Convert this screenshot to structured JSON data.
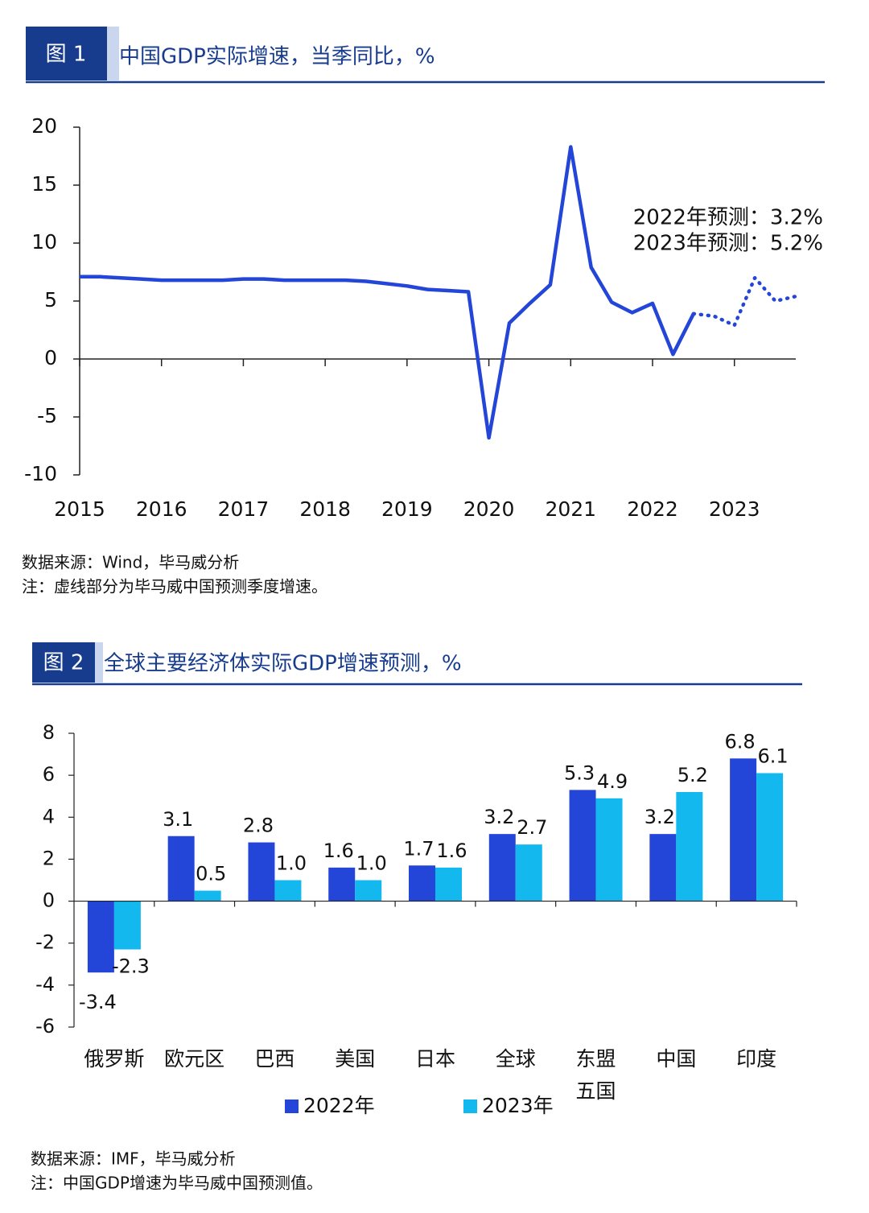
{
  "chart_data": [
    {
      "type": "line",
      "figure_label": "图 1",
      "title": "中国GDP实际增速，当季同比，%",
      "categories": [
        "2015",
        null,
        null,
        null,
        "2016",
        null,
        null,
        null,
        "2017",
        null,
        null,
        null,
        "2018",
        null,
        null,
        null,
        "2019",
        null,
        null,
        null,
        "2020",
        null,
        null,
        null,
        "2021",
        null,
        null,
        null,
        "2022",
        null,
        null,
        null,
        "2023",
        null,
        null,
        null
      ],
      "series": [
        {
          "color": "#2446d8",
          "values": [
            7.1,
            7.1,
            7.0,
            6.9,
            6.8,
            6.8,
            6.8,
            6.8,
            6.9,
            6.9,
            6.8,
            6.8,
            6.8,
            6.8,
            6.7,
            6.5,
            6.3,
            6.0,
            5.9,
            5.8,
            -6.8,
            3.1,
            4.8,
            6.4,
            18.3,
            7.9,
            4.9,
            4.0,
            4.8,
            0.4,
            3.9,
            null,
            null,
            null,
            null,
            null
          ]
        },
        {
          "color": "#2446d8",
          "dotted": true,
          "values": [
            null,
            null,
            null,
            null,
            null,
            null,
            null,
            null,
            null,
            null,
            null,
            null,
            null,
            null,
            null,
            null,
            null,
            null,
            null,
            null,
            null,
            null,
            null,
            null,
            null,
            null,
            null,
            null,
            null,
            null,
            3.9,
            3.7,
            2.9,
            7.0,
            5.0,
            5.4
          ]
        }
      ],
      "ylim": [
        -10,
        20
      ],
      "yticks": [
        -10,
        -5,
        0,
        5,
        10,
        15,
        20
      ],
      "annotations": [
        "2022年预测：3.2%",
        "2023年预测：5.2%"
      ],
      "source": "数据来源：Wind，毕马威分析",
      "note": "注：虚线部分为毕马威中国预测季度增速。"
    },
    {
      "type": "bar",
      "figure_label": "图 2",
      "title": "全球主要经济体实际GDP增速预测，%",
      "categories": [
        "俄罗斯",
        "欧元区",
        "巴西",
        "美国",
        "日本",
        "全球",
        "东盟\n五国",
        "中国",
        "印度"
      ],
      "series": [
        {
          "name": "2022年",
          "color": "#2446d8",
          "values": [
            -3.4,
            3.1,
            2.8,
            1.6,
            1.7,
            3.2,
            5.3,
            3.2,
            6.8
          ],
          "value_labels": [
            "-3.4",
            "3.1",
            "2.8",
            "1.6",
            "1.7",
            "3.2",
            "5.3",
            "3.2",
            "6.8"
          ]
        },
        {
          "name": "2023年",
          "color": "#12b8ee",
          "values": [
            -2.3,
            0.5,
            1.0,
            1.0,
            1.6,
            2.7,
            4.9,
            5.2,
            6.1
          ],
          "value_labels": [
            "-2.3",
            "0.5",
            "1.0",
            "1.0",
            "1.6",
            "2.7",
            "4.9",
            "5.2",
            "6.1"
          ]
        }
      ],
      "ylim": [
        -6,
        8
      ],
      "yticks": [
        -6,
        -4,
        -2,
        0,
        2,
        4,
        6,
        8
      ],
      "legend": "bottom",
      "source": "数据来源：IMF，毕马威分析",
      "note": "注：中国GDP增速为毕马威中国预测值。"
    }
  ]
}
